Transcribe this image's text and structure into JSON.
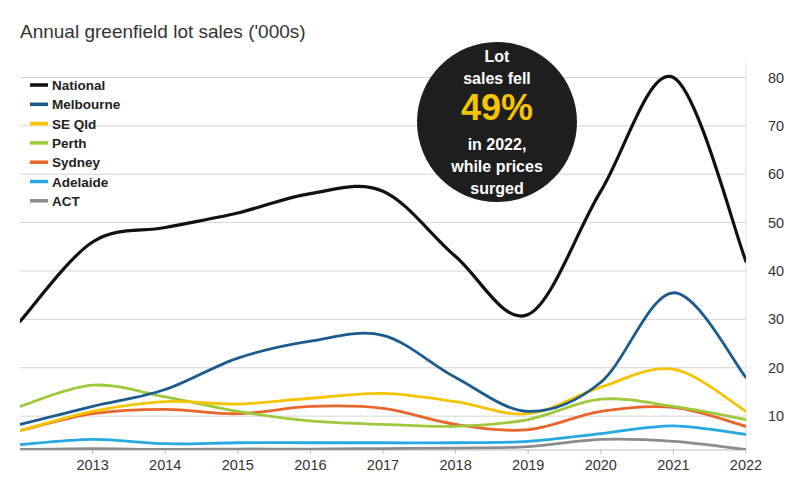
{
  "chart_data": {
    "type": "line",
    "title": "Annual greenfield lot sales ('000s)",
    "annotation": [
      "Lot",
      "sales fell",
      "49%",
      "in 2022,",
      "while prices",
      "surged"
    ],
    "x": [
      2012,
      2013,
      2014,
      2015,
      2016,
      2017,
      2018,
      2019,
      2020,
      2021,
      2022
    ],
    "xlim": [
      2012,
      2022
    ],
    "xticks": [
      2013,
      2014,
      2015,
      2016,
      2017,
      2018,
      2019,
      2020,
      2021,
      2022
    ],
    "ylim": [
      3,
      83
    ],
    "yticks": [
      10,
      20,
      30,
      40,
      50,
      60,
      70,
      80
    ],
    "grid": true,
    "legend": "top-left",
    "series": [
      {
        "name": "National",
        "color": "#111111",
        "values": [
          29.6,
          46,
          49,
          52,
          56,
          56.5,
          43,
          31,
          56.5,
          80,
          42
        ]
      },
      {
        "name": "Melbourne",
        "color": "#1b5a8e",
        "values": [
          8.3,
          12,
          15.5,
          22,
          25.5,
          26.7,
          18,
          11,
          17,
          35.5,
          18
        ]
      },
      {
        "name": "SE Qld",
        "color": "#f5c400",
        "values": [
          7,
          11,
          13,
          12.5,
          13.7,
          14.7,
          13,
          10.5,
          16,
          19.7,
          11
        ]
      },
      {
        "name": "Perth",
        "color": "#9dc93b",
        "values": [
          12,
          16.4,
          14,
          11,
          9,
          8.3,
          7.9,
          9.3,
          13.5,
          12,
          9.3
        ]
      },
      {
        "name": "Sydney",
        "color": "#e8662b",
        "values": [
          7,
          10.5,
          11.4,
          10.5,
          12,
          11.6,
          8.3,
          7.2,
          11,
          11.8,
          7.9
        ]
      },
      {
        "name": "Adelaide",
        "color": "#27a8e0",
        "values": [
          4.1,
          5.2,
          4.3,
          4.5,
          4.5,
          4.5,
          4.5,
          4.8,
          6.4,
          8,
          6.2
        ]
      },
      {
        "name": "ACT",
        "color": "#8c8c8c",
        "values": [
          3.1,
          3.3,
          3.1,
          3.2,
          3.2,
          3.3,
          3.4,
          3.7,
          5.2,
          4.8,
          3.1
        ]
      }
    ]
  }
}
